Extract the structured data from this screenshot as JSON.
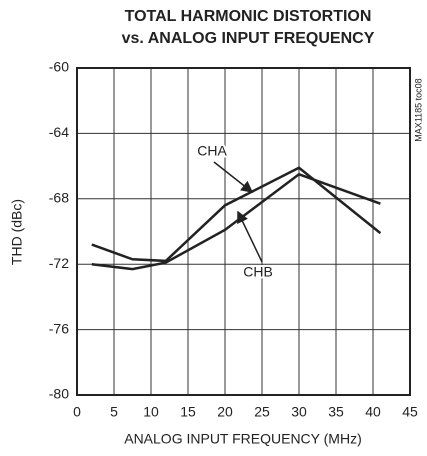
{
  "chart_data": {
    "type": "line",
    "title": [
      "TOTAL HARMONIC DISTORTION",
      "vs. ANALOG INPUT FREQUENCY"
    ],
    "x_label": "ANALOG INPUT FREQUENCY (MHz)",
    "y_label": "THD (dBc)",
    "side_note": "MAX1185 toc08",
    "x": [
      2,
      7.5,
      12,
      20,
      30,
      41
    ],
    "series": [
      {
        "name": "CHA",
        "color": "#222222",
        "values": [
          -70.8,
          -71.7,
          -71.8,
          -68.4,
          -66.1,
          -70.1
        ]
      },
      {
        "name": "CHB",
        "color": "#222222",
        "values": [
          -72,
          -72.3,
          -71.9,
          -69.9,
          -66.5,
          -68.3
        ]
      }
    ],
    "xlim": [
      0,
      45
    ],
    "xticks": [
      0,
      5,
      10,
      15,
      20,
      25,
      30,
      35,
      40,
      45
    ],
    "ylim": [
      -80,
      -60
    ],
    "yticks": [
      -80,
      -76,
      -72,
      -68,
      -64,
      -60
    ],
    "grid": true
  }
}
